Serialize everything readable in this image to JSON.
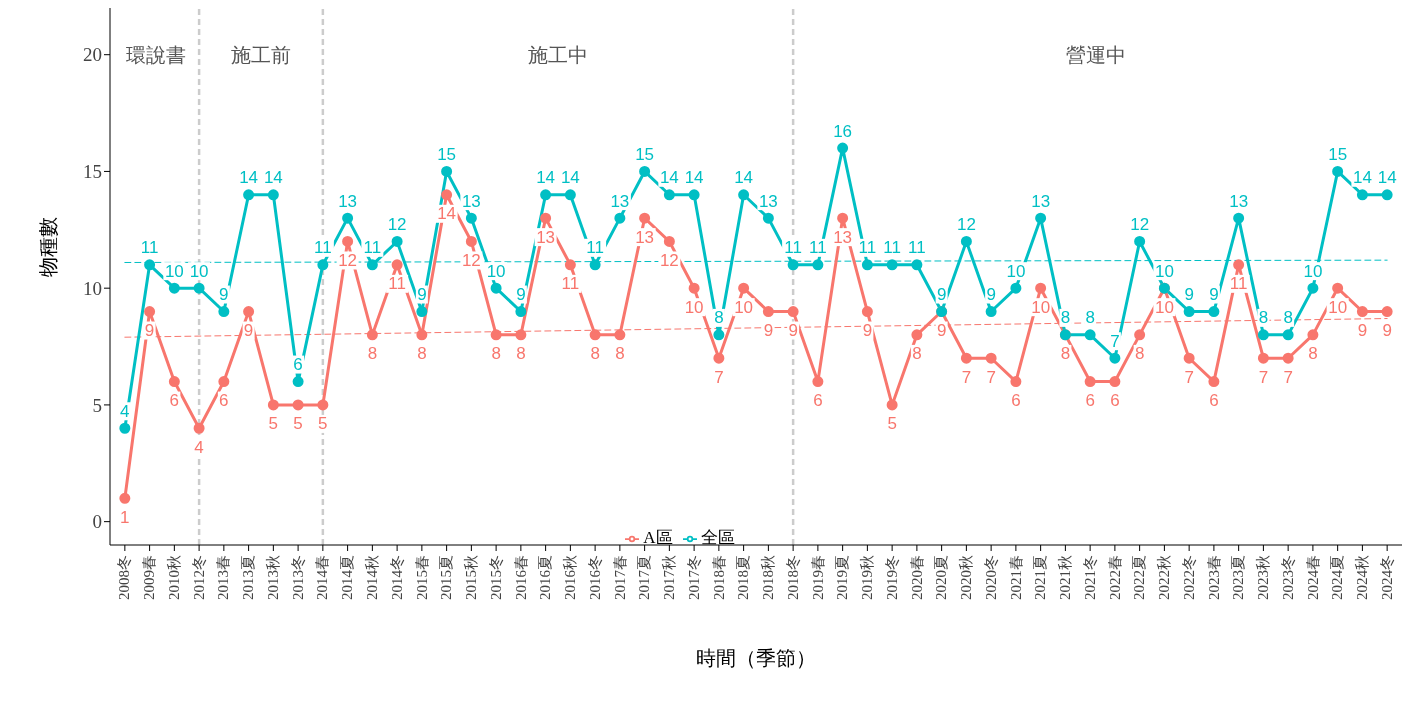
{
  "chart_data": {
    "type": "line",
    "xlabel": "時間（季節）",
    "ylabel": "物種數",
    "categories": [
      "2008冬",
      "2009春",
      "2010秋",
      "2012冬",
      "2013春",
      "2013夏",
      "2013秋",
      "2013冬",
      "2014春",
      "2014夏",
      "2014秋",
      "2014冬",
      "2015春",
      "2015夏",
      "2015秋",
      "2015冬",
      "2016春",
      "2016夏",
      "2016秋",
      "2016冬",
      "2017春",
      "2017夏",
      "2017秋",
      "2017冬",
      "2018春",
      "2018夏",
      "2018秋",
      "2018冬",
      "2019春",
      "2019夏",
      "2019秋",
      "2019冬",
      "2020春",
      "2020夏",
      "2020秋",
      "2020冬",
      "2021春",
      "2021夏",
      "2021秋",
      "2021冬",
      "2022春",
      "2022夏",
      "2022秋",
      "2022冬",
      "2023春",
      "2023夏",
      "2023秋",
      "2023冬",
      "2024春",
      "2024夏",
      "2024秋",
      "2024冬"
    ],
    "series": [
      {
        "name": "A區",
        "color": "#f8766d",
        "values": [
          1,
          9,
          6,
          4,
          6,
          9,
          5,
          5,
          5,
          12,
          8,
          11,
          8,
          14,
          12,
          8,
          8,
          13,
          11,
          8,
          8,
          13,
          12,
          10,
          7,
          10,
          9,
          9,
          6,
          13,
          9,
          5,
          8,
          9,
          7,
          7,
          6,
          10,
          8,
          6,
          6,
          8,
          10,
          7,
          6,
          11,
          7,
          7,
          8,
          10,
          9,
          9
        ],
        "value_labels": [
          "1",
          "9",
          "6",
          "4",
          "6",
          "9",
          "5",
          "5",
          "5",
          "12",
          "8",
          "11",
          "8",
          "14",
          "12",
          "8",
          "8",
          "13",
          "11",
          "8",
          "8",
          "13",
          "12",
          "10",
          "7",
          "10",
          "9",
          "9",
          "6",
          "13",
          "9",
          "5",
          "8",
          "9",
          "7",
          "7",
          "6",
          "10",
          "8",
          "6",
          "6",
          "8",
          "10",
          "7",
          "6",
          "11",
          "7",
          "7",
          "8",
          "10",
          "9",
          "9"
        ]
      },
      {
        "name": "全區",
        "color": "#00bfc4",
        "values": [
          4,
          11,
          10,
          10,
          9,
          14,
          14,
          6,
          11,
          13,
          11,
          12,
          9,
          15,
          13,
          10,
          9,
          14,
          14,
          11,
          13,
          15,
          14,
          14,
          8,
          14,
          13,
          11,
          11,
          16,
          11,
          11,
          11,
          9,
          12,
          9,
          10,
          13,
          8,
          8,
          7,
          12,
          10,
          9,
          9,
          13,
          8,
          8,
          10,
          15,
          14,
          14
        ],
        "value_labels": [
          "4",
          "11",
          "10",
          "10",
          "9",
          "14",
          "14",
          "6",
          "11",
          "13",
          "11",
          "12",
          "9",
          "15",
          "13",
          "10",
          "9",
          "14",
          "14",
          "11",
          "13",
          "15",
          "14",
          "14",
          "8",
          "14",
          "13",
          "11",
          "11",
          "16",
          "11",
          "11",
          "11",
          "9",
          "12",
          "9",
          "10",
          "13",
          "8",
          "8",
          "7",
          "12",
          "10",
          "9",
          "9",
          "13",
          "8",
          "8",
          "10",
          "15",
          "14",
          "14"
        ]
      },
      {
        "type": "line",
        "color": "#f8766d",
        "line_style": "dashed",
        "marker": "none",
        "x": [
          "2008冬",
          "2024冬"
        ],
        "values": [
          7.9,
          8.7
        ]
      },
      {
        "type": "line",
        "color": "#00bfc4",
        "line_style": "dashed",
        "marker": "none",
        "x": [
          "2008冬",
          "2024冬"
        ],
        "values": [
          11.1,
          11.2
        ]
      }
    ],
    "ref_lines": [
      {
        "axis": "x",
        "value": "2012冬",
        "color": "#cccccc",
        "line_style": "dashed"
      },
      {
        "axis": "x",
        "value": "2014春",
        "color": "#cccccc",
        "line_style": "dashed"
      },
      {
        "axis": "x",
        "value": "2018冬",
        "color": "#cccccc",
        "line_style": "dashed"
      }
    ],
    "annotations": [
      "環說書",
      "施工前",
      "施工中",
      "營運中"
    ],
    "ylim": [
      -1,
      22
    ],
    "yticks": [
      0,
      5,
      10,
      15,
      20
    ],
    "legend": "bottom",
    "marker": "circle",
    "line_style": "solid"
  }
}
